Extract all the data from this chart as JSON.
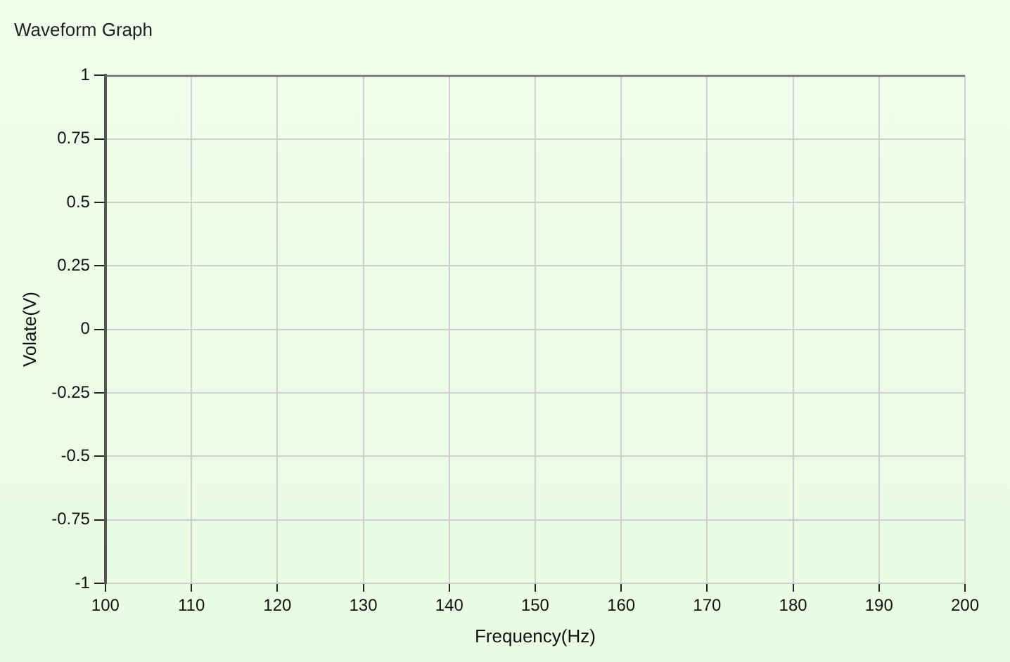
{
  "chart_data": {
    "type": "line",
    "title": "Waveform Graph",
    "xlabel": "Frequency(Hz)",
    "ylabel": "Volate(V)",
    "x": [
      100,
      200
    ],
    "series": [
      {
        "color": "#606060",
        "values": [
          1,
          1
        ]
      }
    ],
    "xlim": [
      100,
      200
    ],
    "xticks": [
      100,
      110,
      120,
      130,
      140,
      150,
      160,
      170,
      180,
      190,
      200
    ],
    "ylim": [
      -1,
      1
    ],
    "yticks": [
      {
        "value": -1,
        "label": "-1"
      },
      {
        "value": -0.75,
        "label": "-0.75"
      },
      {
        "value": -0.5,
        "label": "-0.5"
      },
      {
        "value": -0.25,
        "label": "-0.25"
      },
      {
        "value": 0,
        "label": "0"
      },
      {
        "value": 0.25,
        "label": "0.25"
      },
      {
        "value": 0.5,
        "label": "0.5"
      },
      {
        "value": 0.75,
        "label": "0.75"
      },
      {
        "value": 1,
        "label": "1"
      }
    ],
    "grid": true,
    "legend": false,
    "marker": "none",
    "line_style": "solid"
  }
}
